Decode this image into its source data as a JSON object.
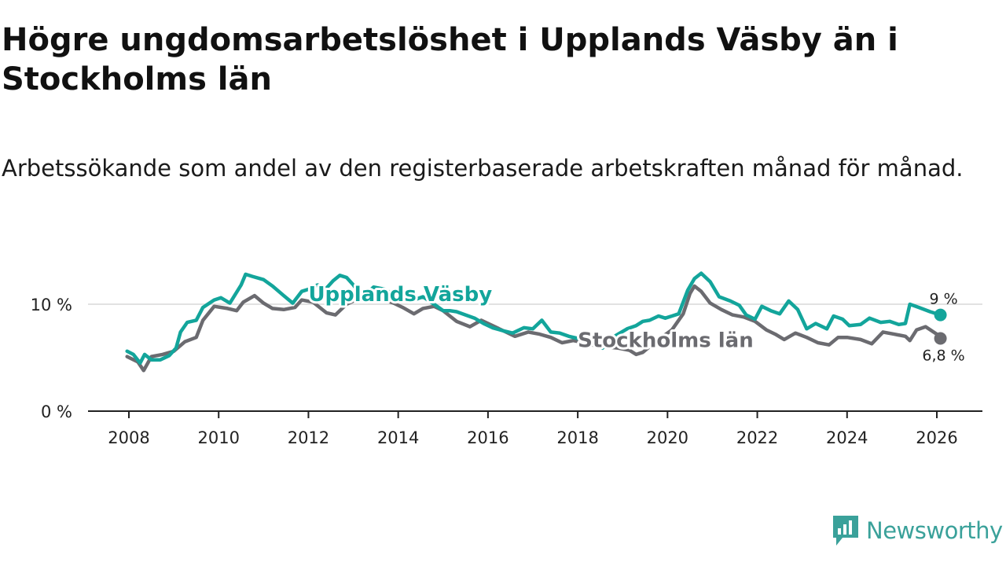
{
  "title": "Högre ungdomsarbetslöshet i Upplands Väsby än i Stockholms län",
  "subtitle": "Arbetssökande som andel av den registerbaserade arbetskraften månad för månad.",
  "brand": {
    "name": "Newsworthy",
    "icon": "newsworthy-logo-icon",
    "color": "#3aa19a"
  },
  "chart_data": {
    "type": "line",
    "title": "Högre ungdomsarbetslöshet i Upplands Väsby än i Stockholms län",
    "xlabel": "",
    "ylabel": "",
    "xlim": [
      2007.5,
      2027.0
    ],
    "ylim": [
      0,
      14
    ],
    "grid": true,
    "x_ticks": [
      2008,
      2010,
      2012,
      2014,
      2016,
      2018,
      2020,
      2022,
      2024,
      2026
    ],
    "x_tick_labels": [
      "2008",
      "2010",
      "2012",
      "2014",
      "2016",
      "2018",
      "2020",
      "2022",
      "2024",
      "2026"
    ],
    "y_ticks": [
      0,
      10
    ],
    "y_tick_labels": [
      "0 %",
      "10 %"
    ],
    "series": [
      {
        "name": "Stockholms län",
        "label": "Stockholms län",
        "color": "#6b6b70",
        "end_label": "6,8 %",
        "points": [
          [
            2007.96,
            5.1
          ],
          [
            2008.2,
            4.6
          ],
          [
            2008.33,
            3.8
          ],
          [
            2008.5,
            5.1
          ],
          [
            2008.75,
            5.3
          ],
          [
            2009.0,
            5.6
          ],
          [
            2009.25,
            6.5
          ],
          [
            2009.5,
            6.9
          ],
          [
            2009.65,
            8.5
          ],
          [
            2009.9,
            9.8
          ],
          [
            2010.2,
            9.6
          ],
          [
            2010.4,
            9.4
          ],
          [
            2010.55,
            10.2
          ],
          [
            2010.8,
            10.8
          ],
          [
            2011.0,
            10.1
          ],
          [
            2011.2,
            9.6
          ],
          [
            2011.45,
            9.5
          ],
          [
            2011.7,
            9.7
          ],
          [
            2011.85,
            10.4
          ],
          [
            2012.1,
            10.2
          ],
          [
            2012.4,
            9.2
          ],
          [
            2012.6,
            9.0
          ],
          [
            2012.85,
            10.0
          ],
          [
            2013.1,
            10.5
          ],
          [
            2013.4,
            10.3
          ],
          [
            2013.7,
            10.4
          ],
          [
            2013.9,
            10.1
          ],
          [
            2014.1,
            9.7
          ],
          [
            2014.35,
            9.1
          ],
          [
            2014.55,
            9.6
          ],
          [
            2014.8,
            9.8
          ],
          [
            2015.0,
            9.4
          ],
          [
            2015.3,
            8.4
          ],
          [
            2015.6,
            7.9
          ],
          [
            2015.85,
            8.5
          ],
          [
            2016.1,
            8.0
          ],
          [
            2016.35,
            7.5
          ],
          [
            2016.6,
            7.0
          ],
          [
            2016.9,
            7.4
          ],
          [
            2017.15,
            7.2
          ],
          [
            2017.4,
            6.9
          ],
          [
            2017.65,
            6.4
          ],
          [
            2017.9,
            6.6
          ],
          [
            2018.15,
            6.4
          ],
          [
            2018.4,
            6.1
          ],
          [
            2018.65,
            6.0
          ],
          [
            2018.9,
            5.9
          ],
          [
            2019.15,
            5.7
          ],
          [
            2019.3,
            5.3
          ],
          [
            2019.45,
            5.5
          ],
          [
            2019.65,
            6.2
          ],
          [
            2019.9,
            7.0
          ],
          [
            2020.1,
            7.6
          ],
          [
            2020.35,
            9.1
          ],
          [
            2020.5,
            11.0
          ],
          [
            2020.6,
            11.7
          ],
          [
            2020.75,
            11.2
          ],
          [
            2020.95,
            10.1
          ],
          [
            2021.2,
            9.5
          ],
          [
            2021.45,
            9.0
          ],
          [
            2021.7,
            8.8
          ],
          [
            2021.95,
            8.4
          ],
          [
            2022.2,
            7.6
          ],
          [
            2022.4,
            7.2
          ],
          [
            2022.6,
            6.7
          ],
          [
            2022.85,
            7.3
          ],
          [
            2023.1,
            6.9
          ],
          [
            2023.35,
            6.4
          ],
          [
            2023.6,
            6.2
          ],
          [
            2023.8,
            6.9
          ],
          [
            2024.0,
            6.9
          ],
          [
            2024.3,
            6.7
          ],
          [
            2024.55,
            6.3
          ],
          [
            2024.8,
            7.4
          ],
          [
            2025.05,
            7.2
          ],
          [
            2025.3,
            7.0
          ],
          [
            2025.4,
            6.6
          ],
          [
            2025.55,
            7.6
          ],
          [
            2025.75,
            7.9
          ],
          [
            2026.0,
            7.2
          ],
          [
            2026.08,
            6.8
          ]
        ]
      },
      {
        "name": "Upplands Väsby",
        "label": "Upplands Väsby",
        "color": "#13a59b",
        "end_label": "9 %",
        "points": [
          [
            2007.96,
            5.6
          ],
          [
            2008.1,
            5.3
          ],
          [
            2008.25,
            4.5
          ],
          [
            2008.35,
            5.3
          ],
          [
            2008.5,
            4.8
          ],
          [
            2008.7,
            4.8
          ],
          [
            2008.9,
            5.2
          ],
          [
            2009.05,
            5.9
          ],
          [
            2009.15,
            7.4
          ],
          [
            2009.3,
            8.3
          ],
          [
            2009.5,
            8.5
          ],
          [
            2009.65,
            9.7
          ],
          [
            2009.9,
            10.4
          ],
          [
            2010.05,
            10.6
          ],
          [
            2010.25,
            10.1
          ],
          [
            2010.5,
            11.8
          ],
          [
            2010.6,
            12.8
          ],
          [
            2010.75,
            12.6
          ],
          [
            2011.0,
            12.3
          ],
          [
            2011.2,
            11.7
          ],
          [
            2011.45,
            10.8
          ],
          [
            2011.65,
            10.1
          ],
          [
            2011.85,
            11.2
          ],
          [
            2012.0,
            11.4
          ],
          [
            2012.2,
            11.8
          ],
          [
            2012.4,
            11.5
          ],
          [
            2012.55,
            12.2
          ],
          [
            2012.7,
            12.7
          ],
          [
            2012.85,
            12.5
          ],
          [
            2013.0,
            11.8
          ],
          [
            2013.2,
            10.6
          ],
          [
            2013.45,
            11.6
          ],
          [
            2013.7,
            11.4
          ],
          [
            2013.9,
            10.9
          ],
          [
            2014.1,
            10.6
          ],
          [
            2014.35,
            10.4
          ],
          [
            2014.55,
            10.7
          ],
          [
            2014.8,
            10.0
          ],
          [
            2015.0,
            9.4
          ],
          [
            2015.15,
            9.4
          ],
          [
            2015.3,
            9.3
          ],
          [
            2015.5,
            9.0
          ],
          [
            2015.7,
            8.7
          ],
          [
            2015.9,
            8.2
          ],
          [
            2016.1,
            7.8
          ],
          [
            2016.35,
            7.5
          ],
          [
            2016.55,
            7.3
          ],
          [
            2016.8,
            7.8
          ],
          [
            2017.0,
            7.7
          ],
          [
            2017.2,
            8.5
          ],
          [
            2017.4,
            7.4
          ],
          [
            2017.6,
            7.3
          ],
          [
            2017.8,
            7.0
          ],
          [
            2018.0,
            6.8
          ],
          [
            2018.2,
            6.5
          ],
          [
            2018.4,
            6.2
          ],
          [
            2018.55,
            5.9
          ],
          [
            2018.7,
            6.7
          ],
          [
            2018.9,
            7.2
          ],
          [
            2019.1,
            7.7
          ],
          [
            2019.3,
            8.0
          ],
          [
            2019.45,
            8.4
          ],
          [
            2019.6,
            8.5
          ],
          [
            2019.8,
            8.9
          ],
          [
            2019.95,
            8.7
          ],
          [
            2020.1,
            8.9
          ],
          [
            2020.25,
            9.1
          ],
          [
            2020.45,
            11.3
          ],
          [
            2020.6,
            12.4
          ],
          [
            2020.75,
            12.9
          ],
          [
            2020.95,
            12.1
          ],
          [
            2021.15,
            10.7
          ],
          [
            2021.4,
            10.3
          ],
          [
            2021.6,
            9.9
          ],
          [
            2021.75,
            9.0
          ],
          [
            2021.95,
            8.6
          ],
          [
            2022.1,
            9.8
          ],
          [
            2022.3,
            9.4
          ],
          [
            2022.5,
            9.1
          ],
          [
            2022.7,
            10.3
          ],
          [
            2022.9,
            9.5
          ],
          [
            2023.1,
            7.7
          ],
          [
            2023.3,
            8.2
          ],
          [
            2023.55,
            7.7
          ],
          [
            2023.7,
            8.9
          ],
          [
            2023.9,
            8.6
          ],
          [
            2024.05,
            8.0
          ],
          [
            2024.3,
            8.1
          ],
          [
            2024.5,
            8.7
          ],
          [
            2024.75,
            8.3
          ],
          [
            2024.95,
            8.4
          ],
          [
            2025.15,
            8.1
          ],
          [
            2025.3,
            8.2
          ],
          [
            2025.4,
            10.0
          ],
          [
            2025.6,
            9.7
          ],
          [
            2025.85,
            9.3
          ],
          [
            2026.08,
            9.0
          ]
        ]
      }
    ]
  }
}
